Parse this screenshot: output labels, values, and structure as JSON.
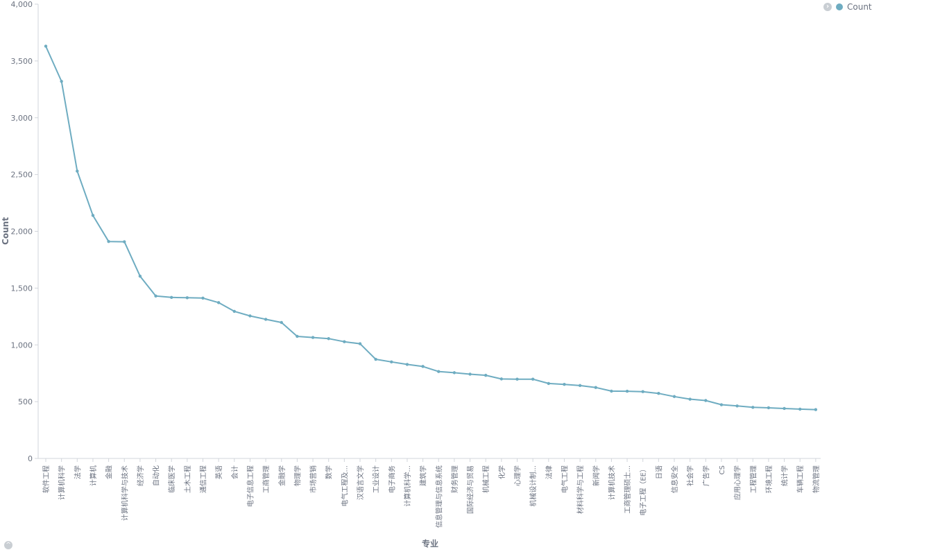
{
  "legend": {
    "toggle_icon": "chevron-right-icon",
    "label": "Count",
    "color": "#6eacc1"
  },
  "collapse_icon": "chevron-up-icon",
  "chart_data": {
    "type": "line",
    "xlabel": "专业",
    "ylabel": "Count",
    "ylim": [
      0,
      4000
    ],
    "yticks": [
      0,
      500,
      1000,
      1500,
      2000,
      2500,
      3000,
      3500,
      4000
    ],
    "ytick_labels": [
      "0",
      "500",
      "1,000",
      "1,500",
      "2,000",
      "2,500",
      "3,000",
      "3,500",
      "4,000"
    ],
    "grid": false,
    "legend_position": "top-right",
    "line_color": "#6eacc1",
    "categories": [
      "软件工程",
      "计算机科学",
      "法学",
      "计算机",
      "金融",
      "计算机科学与技术",
      "经济学",
      "自动化",
      "临床医学",
      "土木工程",
      "通信工程",
      "英语",
      "会计",
      "电子信息工程",
      "工商管理",
      "金融学",
      "物理学",
      "市场营销",
      "数学",
      "电气工程及...",
      "汉语言文学",
      "工业设计",
      "电子商务",
      "计算机科学...",
      "建筑学",
      "信息管理与信息系统",
      "财务管理",
      "国际经济与贸易",
      "机械工程",
      "化学",
      "心理学",
      "机械设计制...",
      "法律",
      "电气工程",
      "材料科学与工程",
      "新闻学",
      "计算机技术",
      "工商管理硕士...",
      "电子工程（EE）",
      "日语",
      "信息安全",
      "社会学",
      "广告学",
      "CS",
      "应用心理学",
      "工程管理",
      "环境工程",
      "统计学",
      "车辆工程",
      "物流管理"
    ],
    "series": [
      {
        "name": "Count",
        "values": [
          3630,
          3320,
          2530,
          2140,
          1910,
          1908,
          1605,
          1430,
          1418,
          1415,
          1412,
          1372,
          1295,
          1255,
          1225,
          1197,
          1075,
          1065,
          1055,
          1028,
          1010,
          873,
          850,
          828,
          810,
          765,
          755,
          742,
          732,
          700,
          698,
          698,
          660,
          652,
          642,
          625,
          593,
          592,
          588,
          573,
          545,
          522,
          510,
          473,
          462,
          450,
          446,
          440,
          434,
          430
        ]
      }
    ]
  }
}
